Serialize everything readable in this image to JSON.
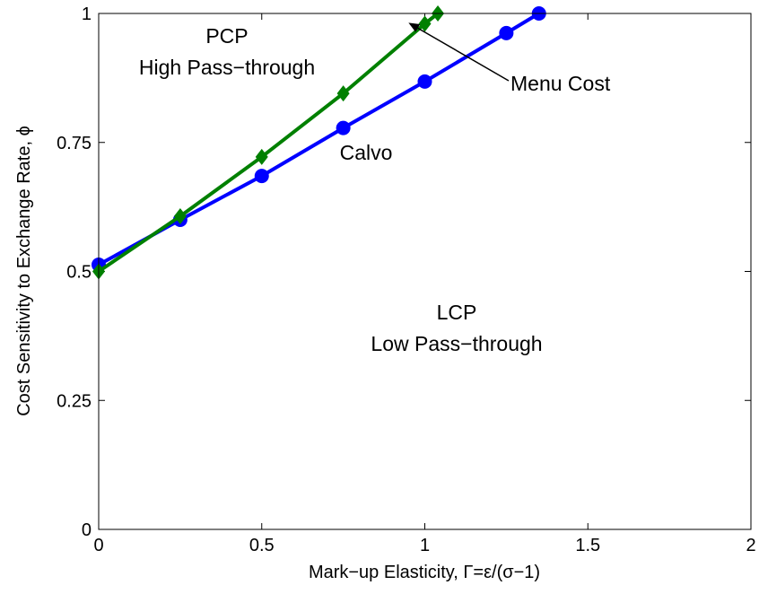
{
  "chart_data": {
    "type": "line",
    "title": "",
    "xlabel": "Mark−up Elasticity, Γ=ε/(σ−1)",
    "ylabel": "Cost Sensitivity to Exchange Rate, ϕ",
    "xlim": [
      0,
      2
    ],
    "ylim": [
      0,
      1
    ],
    "xticks": [
      0,
      0.5,
      1,
      1.5,
      2
    ],
    "xtick_labels": [
      "0",
      "0.5",
      "1",
      "1.5",
      "2"
    ],
    "yticks": [
      0,
      0.25,
      0.5,
      0.75,
      1
    ],
    "ytick_labels": [
      "0",
      "0.25",
      "0.5",
      "0.75",
      "1"
    ],
    "grid": false,
    "series": [
      {
        "name": "Calvo",
        "color": "#0000ff",
        "marker": "circle",
        "x": [
          0,
          0.25,
          0.5,
          0.75,
          1.0,
          1.25,
          1.35
        ],
        "y": [
          0.513,
          0.6,
          0.685,
          0.778,
          0.868,
          0.962,
          1.0
        ]
      },
      {
        "name": "Menu Cost",
        "color": "#008000",
        "marker": "diamond",
        "x": [
          0,
          0.25,
          0.5,
          0.75,
          1.0,
          1.04
        ],
        "y": [
          0.5,
          0.607,
          0.722,
          0.845,
          0.98,
          1.0
        ]
      }
    ],
    "annotations": [
      {
        "id": "pcp",
        "lines": [
          "PCP",
          "High Pass−through"
        ]
      },
      {
        "id": "lcp",
        "lines": [
          "LCP",
          "Low Pass−through"
        ]
      },
      {
        "id": "calvo",
        "lines": [
          "Calvo"
        ]
      },
      {
        "id": "menu",
        "lines": [
          "Menu Cost"
        ],
        "arrow_to": [
          0.95,
          0.982
        ]
      }
    ]
  }
}
